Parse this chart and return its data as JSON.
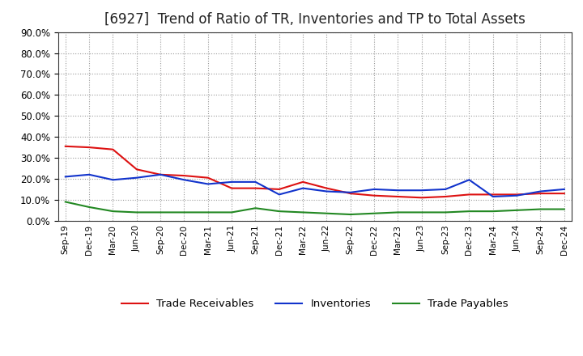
{
  "title": "[6927]  Trend of Ratio of TR, Inventories and TP to Total Assets",
  "labels": [
    "Sep-19",
    "Dec-19",
    "Mar-20",
    "Jun-20",
    "Sep-20",
    "Dec-20",
    "Mar-21",
    "Jun-21",
    "Sep-21",
    "Dec-21",
    "Mar-22",
    "Jun-22",
    "Sep-22",
    "Dec-22",
    "Mar-23",
    "Jun-23",
    "Sep-23",
    "Dec-23",
    "Mar-24",
    "Jun-24",
    "Sep-24",
    "Dec-24"
  ],
  "trade_receivables": [
    0.355,
    0.35,
    0.34,
    0.245,
    0.22,
    0.215,
    0.205,
    0.155,
    0.155,
    0.15,
    0.185,
    0.155,
    0.13,
    0.12,
    0.115,
    0.11,
    0.115,
    0.125,
    0.125,
    0.125,
    0.13,
    0.13
  ],
  "inventories": [
    0.21,
    0.22,
    0.195,
    0.205,
    0.22,
    0.195,
    0.175,
    0.185,
    0.185,
    0.125,
    0.155,
    0.14,
    0.135,
    0.15,
    0.145,
    0.145,
    0.15,
    0.195,
    0.115,
    0.12,
    0.14,
    0.15
  ],
  "trade_payables": [
    0.09,
    0.065,
    0.045,
    0.04,
    0.04,
    0.04,
    0.04,
    0.04,
    0.06,
    0.045,
    0.04,
    0.035,
    0.03,
    0.035,
    0.04,
    0.04,
    0.04,
    0.045,
    0.045,
    0.05,
    0.055,
    0.055
  ],
  "tr_color": "#dd1111",
  "inv_color": "#1133cc",
  "tp_color": "#228822",
  "ylim": [
    0.0,
    0.9
  ],
  "yticks": [
    0.0,
    0.1,
    0.2,
    0.3,
    0.4,
    0.5,
    0.6,
    0.7,
    0.8,
    0.9
  ],
  "bg_color": "#ffffff",
  "grid_color": "#999999",
  "title_fontsize": 12,
  "legend_labels": [
    "Trade Receivables",
    "Inventories",
    "Trade Payables"
  ]
}
